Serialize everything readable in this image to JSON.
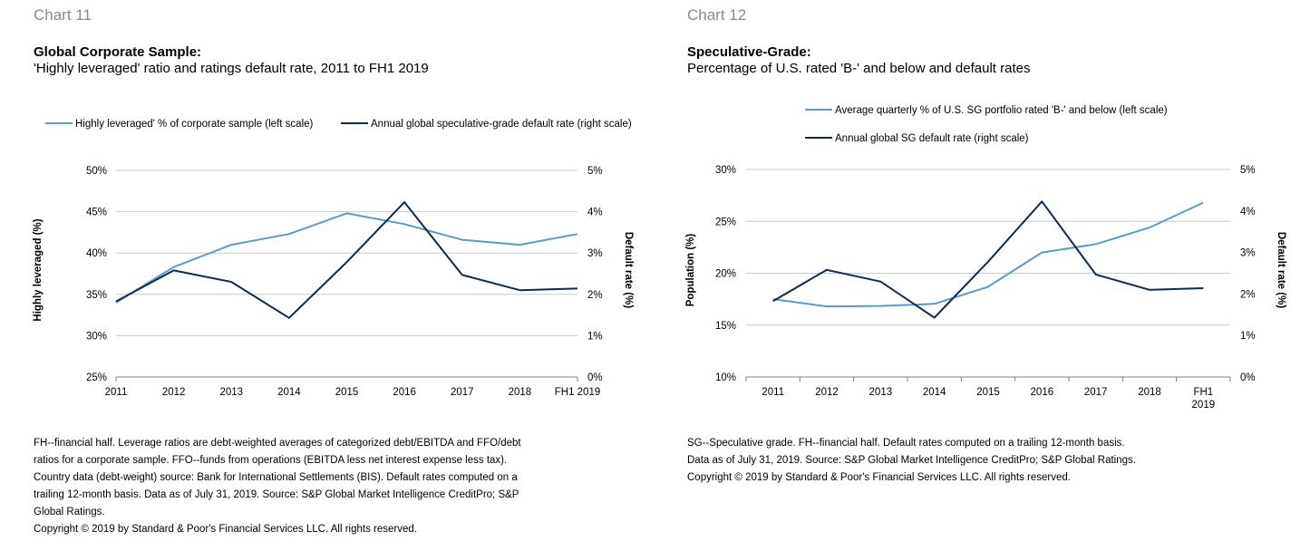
{
  "colors": {
    "light_blue": "#5b9bc5",
    "dark_navy": "#0c2b4e",
    "grid": "#c8c8c8",
    "axis": "#7f7f7f"
  },
  "chart_data": [
    {
      "type": "line",
      "chart_number": "Chart 11",
      "title": "Global Corporate Sample:",
      "subtitle": "'Highly leveraged' ratio and ratings default rate, 2011 to FH1 2019",
      "categories": [
        "2011",
        "2012",
        "2013",
        "2014",
        "2015",
        "2016",
        "2017",
        "2018",
        "FH1 2019"
      ],
      "y_left": {
        "label": "Highly leveraged (%)",
        "range": [
          25,
          50
        ],
        "ticks": [
          "25%",
          "30%",
          "35%",
          "40%",
          "45%",
          "50%"
        ]
      },
      "y_right": {
        "label": "Default rate (%)",
        "range": [
          0,
          5
        ],
        "ticks": [
          "0%",
          "1%",
          "2%",
          "3%",
          "4%",
          "5%"
        ]
      },
      "series": [
        {
          "name": "Highly leveraged' % of corporate sample (left scale)",
          "axis": "left",
          "color": "#5b9bc5",
          "values": [
            34.0,
            38.3,
            41.0,
            42.3,
            44.8,
            43.5,
            41.6,
            41.0,
            42.3
          ]
        },
        {
          "name": "Annual global speculative-grade default rate (right scale)",
          "axis": "right",
          "color": "#0c2b4e",
          "values": [
            1.83,
            2.58,
            2.3,
            1.43,
            2.78,
            4.23,
            2.47,
            2.1,
            2.14
          ]
        }
      ],
      "legend": "top",
      "grid": true,
      "footnote": [
        "FH--financial half. Leverage ratios are debt-weighted averages of categorized debt/EBITDA and FFO/debt",
        "ratios for a corporate sample. FFO--funds from operations (EBITDA less net interest expense less tax).",
        "Country data (debt-weight) source: Bank for International Settlements (BIS). Default rates computed on a",
        "trailing 12-month basis. Data as of July 31, 2019. Source: S&P Global Market Intelligence CreditPro; S&P",
        "Global Ratings.",
        "Copyright © 2019 by Standard & Poor's Financial Services LLC. All rights reserved."
      ]
    },
    {
      "type": "line",
      "chart_number": "Chart 12",
      "title": "Speculative-Grade:",
      "subtitle": "Percentage of U.S. rated 'B-' and below and default rates",
      "categories": [
        "2011",
        "2012",
        "2013",
        "2014",
        "2015",
        "2016",
        "2017",
        "2018",
        "FH1|2019"
      ],
      "y_left": {
        "label": "Population (%)",
        "range": [
          10,
          30
        ],
        "ticks": [
          "10%",
          "15%",
          "20%",
          "25%",
          "30%"
        ]
      },
      "y_right": {
        "label": "Default rate (%)",
        "range": [
          0,
          5
        ],
        "ticks": [
          "0%",
          "1%",
          "2%",
          "3%",
          "4%",
          "5%"
        ]
      },
      "series": [
        {
          "name": "Average quarterly % of U.S. SG portfolio rated 'B-' and below (left scale)",
          "axis": "left",
          "color": "#5b9bc5",
          "values": [
            17.5,
            16.8,
            16.85,
            17.05,
            18.7,
            22.0,
            22.8,
            24.4,
            26.8
          ]
        },
        {
          "name": "Annual global SG default rate (right scale)",
          "axis": "right",
          "color": "#0c2b4e",
          "values": [
            1.83,
            2.58,
            2.3,
            1.43,
            2.78,
            4.23,
            2.47,
            2.1,
            2.14
          ]
        }
      ],
      "legend": "top",
      "grid": true,
      "footnote": [
        "SG--Speculative grade. FH--financial half. Default rates computed on a trailing 12-month basis.",
        "Data as of July 31, 2019. Source: S&P Global Market Intelligence CreditPro; S&P Global Ratings.",
        "Copyright © 2019 by Standard & Poor's Financial Services LLC. All rights reserved."
      ]
    }
  ]
}
